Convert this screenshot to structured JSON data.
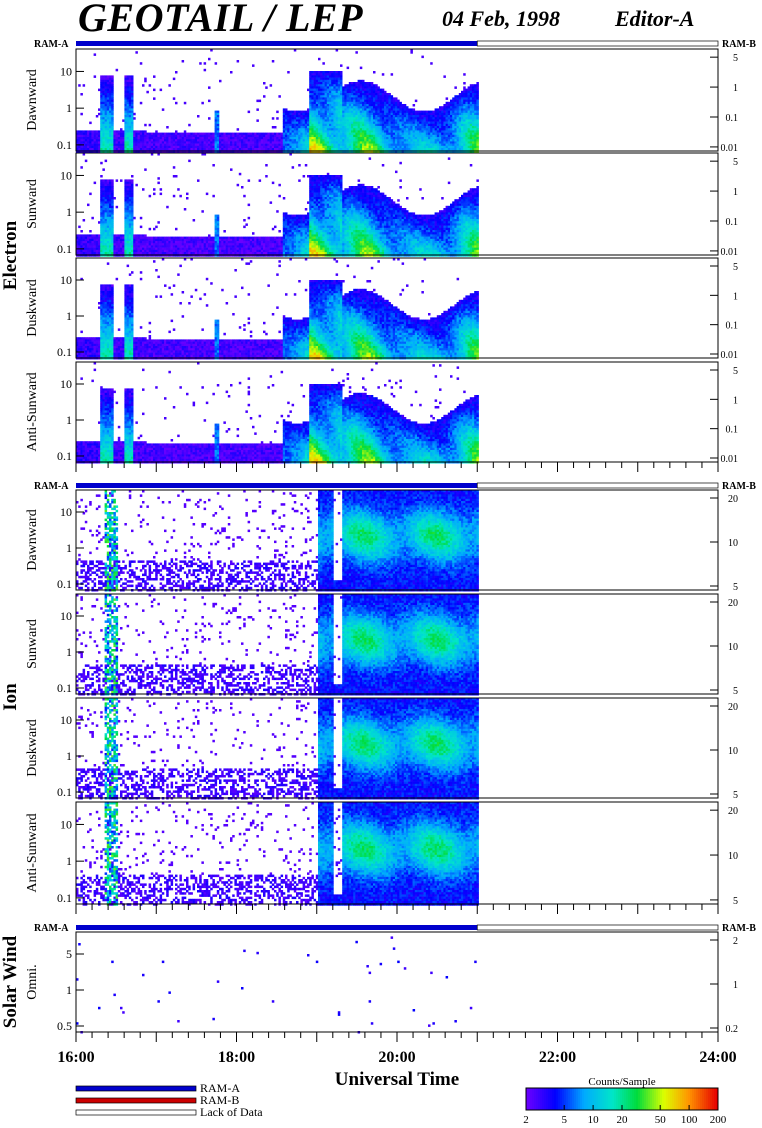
{
  "header": {
    "instrument": "GEOTAIL / LEP",
    "date": "04 Feb, 1998",
    "editor": "Editor-A"
  },
  "ram_labels": {
    "a": "RAM-A",
    "b": "RAM-B"
  },
  "chart_data": {
    "type": "heatmap",
    "x_axis": {
      "label": "Universal Time",
      "ticks": [
        "16:00",
        "18:00",
        "20:00",
        "22:00",
        "24:00"
      ],
      "range": [
        "16:00",
        "24:00"
      ]
    },
    "data_end": "21:00",
    "groups": [
      {
        "name": "Electron",
        "left_ticks": [
          "10",
          "1",
          "0.1"
        ],
        "right_ticks": [
          "5",
          "1",
          "0.1",
          "0.01"
        ],
        "panels": [
          {
            "label": "Dawnward"
          },
          {
            "label": "Sunward"
          },
          {
            "label": "Duskward"
          },
          {
            "label": "Anti-Sunward"
          }
        ]
      },
      {
        "name": "Ion",
        "left_ticks": [
          "10",
          "1",
          "0.1"
        ],
        "right_ticks": [
          "20",
          "10",
          "5"
        ],
        "panels": [
          {
            "label": "Dawnward"
          },
          {
            "label": "Sunward"
          },
          {
            "label": "Duskward"
          },
          {
            "label": "Anti-Sunward"
          }
        ]
      },
      {
        "name": "Solar Wind",
        "left_ticks": [
          "5",
          "1",
          "0.5"
        ],
        "right_ticks": [
          "2",
          "1",
          "0.2"
        ],
        "panels": [
          {
            "label": "Omni."
          }
        ]
      }
    ],
    "colorbar": {
      "title": "Counts/Sample",
      "ticks": [
        "2",
        "5",
        "10",
        "20",
        "50",
        "100",
        "200"
      ],
      "range": [
        2,
        200
      ],
      "scale": "log"
    }
  },
  "legend": [
    {
      "label": "RAM-A",
      "color": "#0000cc"
    },
    {
      "label": "RAM-B",
      "color": "#cc0000"
    },
    {
      "label": "Lack of Data",
      "color": "#ffffff"
    }
  ]
}
